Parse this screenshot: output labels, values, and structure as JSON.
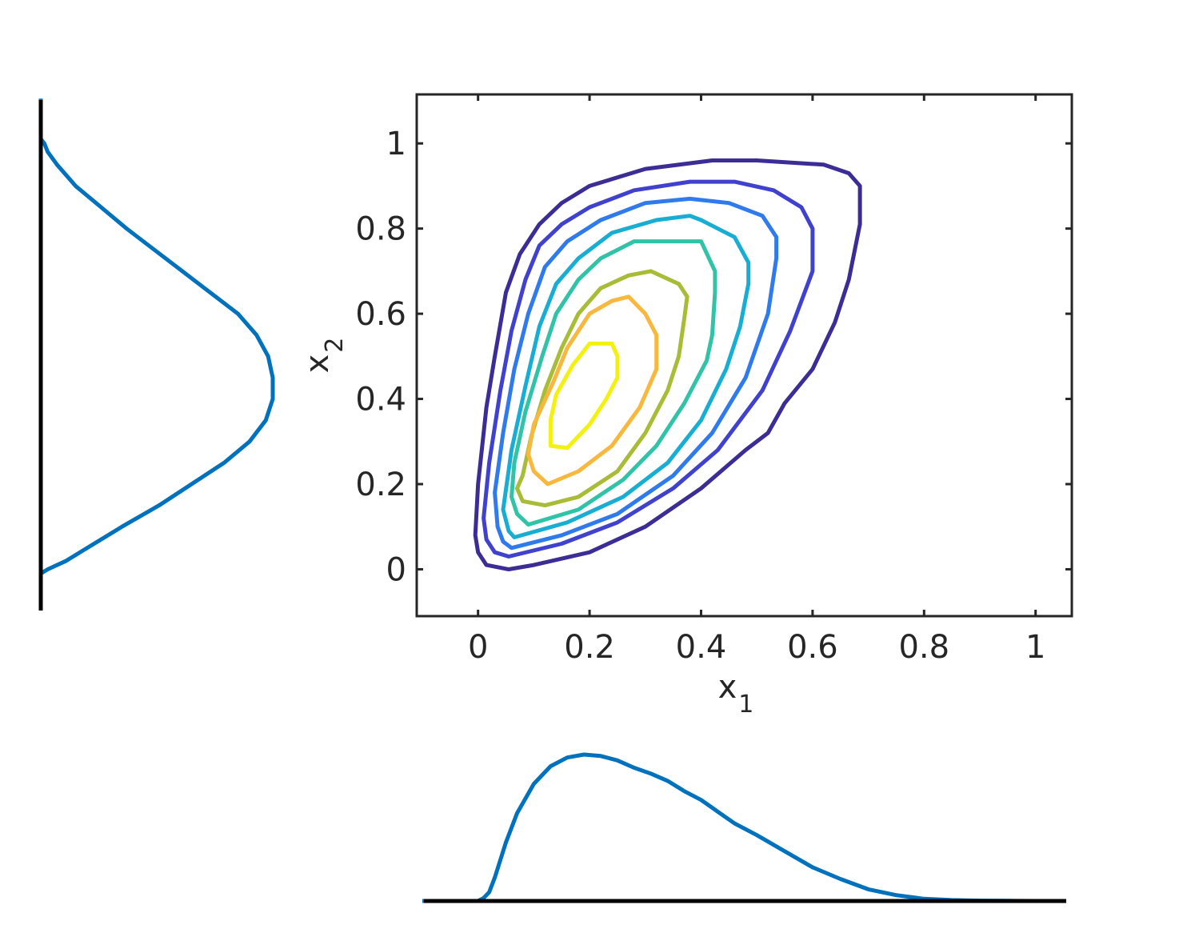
{
  "chart_data": [
    {
      "type": "contour",
      "xlabel": "x",
      "xlabel_sub": "1",
      "ylabel": "x",
      "ylabel_sub": "2",
      "xlim": [
        -0.11,
        1.065
      ],
      "ylim": [
        -0.11,
        1.115
      ],
      "xticks": [
        {
          "value": 0,
          "label": "0"
        },
        {
          "value": 0.2,
          "label": "0.2"
        },
        {
          "value": 0.4,
          "label": "0.4"
        },
        {
          "value": 0.6,
          "label": "0.6"
        },
        {
          "value": 0.8,
          "label": "0.8"
        },
        {
          "value": 1,
          "label": "1"
        }
      ],
      "yticks": [
        {
          "value": 0,
          "label": "0"
        },
        {
          "value": 0.2,
          "label": "0.2"
        },
        {
          "value": 0.4,
          "label": "0.4"
        },
        {
          "value": 0.6,
          "label": "0.6"
        },
        {
          "value": 0.8,
          "label": "0.8"
        },
        {
          "value": 1,
          "label": "1"
        }
      ],
      "box": true,
      "grid": false,
      "levels": [
        {
          "color": "#3b2d95",
          "points": [
            [
              0.055,
              0.0
            ],
            [
              0.1,
              0.01
            ],
            [
              0.2,
              0.04
            ],
            [
              0.3,
              0.1
            ],
            [
              0.4,
              0.19
            ],
            [
              0.48,
              0.28
            ],
            [
              0.52,
              0.32
            ],
            [
              0.55,
              0.39
            ],
            [
              0.6,
              0.47
            ],
            [
              0.64,
              0.58
            ],
            [
              0.665,
              0.68
            ],
            [
              0.685,
              0.81
            ],
            [
              0.685,
              0.9
            ],
            [
              0.665,
              0.93
            ],
            [
              0.62,
              0.95
            ],
            [
              0.5,
              0.96
            ],
            [
              0.42,
              0.96
            ],
            [
              0.3,
              0.94
            ],
            [
              0.2,
              0.9
            ],
            [
              0.15,
              0.86
            ],
            [
              0.11,
              0.81
            ],
            [
              0.075,
              0.74
            ],
            [
              0.05,
              0.65
            ],
            [
              0.03,
              0.5
            ],
            [
              0.015,
              0.38
            ],
            [
              0.0,
              0.2
            ],
            [
              -0.005,
              0.08
            ],
            [
              0.0,
              0.04
            ],
            [
              0.015,
              0.01
            ]
          ]
        },
        {
          "color": "#4042cf",
          "points": [
            [
              0.055,
              0.03
            ],
            [
              0.15,
              0.06
            ],
            [
              0.25,
              0.11
            ],
            [
              0.35,
              0.19
            ],
            [
              0.43,
              0.28
            ],
            [
              0.51,
              0.42
            ],
            [
              0.56,
              0.56
            ],
            [
              0.6,
              0.7
            ],
            [
              0.6,
              0.8
            ],
            [
              0.58,
              0.85
            ],
            [
              0.53,
              0.89
            ],
            [
              0.46,
              0.91
            ],
            [
              0.38,
              0.91
            ],
            [
              0.28,
              0.89
            ],
            [
              0.2,
              0.85
            ],
            [
              0.15,
              0.81
            ],
            [
              0.11,
              0.76
            ],
            [
              0.085,
              0.68
            ],
            [
              0.06,
              0.56
            ],
            [
              0.04,
              0.42
            ],
            [
              0.02,
              0.25
            ],
            [
              0.01,
              0.12
            ],
            [
              0.015,
              0.07
            ],
            [
              0.03,
              0.04
            ]
          ]
        },
        {
          "color": "#2f7bee",
          "points": [
            [
              0.06,
              0.05
            ],
            [
              0.15,
              0.08
            ],
            [
              0.25,
              0.13
            ],
            [
              0.35,
              0.22
            ],
            [
              0.42,
              0.32
            ],
            [
              0.48,
              0.45
            ],
            [
              0.52,
              0.6
            ],
            [
              0.535,
              0.73
            ],
            [
              0.535,
              0.78
            ],
            [
              0.51,
              0.83
            ],
            [
              0.45,
              0.86
            ],
            [
              0.38,
              0.87
            ],
            [
              0.3,
              0.86
            ],
            [
              0.22,
              0.82
            ],
            [
              0.16,
              0.77
            ],
            [
              0.12,
              0.71
            ],
            [
              0.09,
              0.6
            ],
            [
              0.065,
              0.47
            ],
            [
              0.045,
              0.32
            ],
            [
              0.03,
              0.18
            ],
            [
              0.035,
              0.1
            ],
            [
              0.045,
              0.065
            ]
          ]
        },
        {
          "color": "#18aed4",
          "points": [
            [
              0.065,
              0.075
            ],
            [
              0.16,
              0.11
            ],
            [
              0.26,
              0.17
            ],
            [
              0.34,
              0.25
            ],
            [
              0.4,
              0.35
            ],
            [
              0.445,
              0.47
            ],
            [
              0.47,
              0.57
            ],
            [
              0.485,
              0.67
            ],
            [
              0.485,
              0.72
            ],
            [
              0.46,
              0.78
            ],
            [
              0.4,
              0.82
            ],
            [
              0.38,
              0.83
            ],
            [
              0.32,
              0.82
            ],
            [
              0.24,
              0.79
            ],
            [
              0.18,
              0.73
            ],
            [
              0.14,
              0.67
            ],
            [
              0.11,
              0.57
            ],
            [
              0.085,
              0.43
            ],
            [
              0.06,
              0.28
            ],
            [
              0.045,
              0.14
            ],
            [
              0.055,
              0.09
            ]
          ]
        },
        {
          "color": "#31c3a7",
          "points": [
            [
              0.09,
              0.105
            ],
            [
              0.18,
              0.14
            ],
            [
              0.26,
              0.21
            ],
            [
              0.32,
              0.29
            ],
            [
              0.37,
              0.39
            ],
            [
              0.41,
              0.49
            ],
            [
              0.42,
              0.55
            ],
            [
              0.425,
              0.65
            ],
            [
              0.425,
              0.7
            ],
            [
              0.4,
              0.77
            ],
            [
              0.35,
              0.77
            ],
            [
              0.28,
              0.77
            ],
            [
              0.22,
              0.73
            ],
            [
              0.18,
              0.68
            ],
            [
              0.14,
              0.6
            ],
            [
              0.115,
              0.5
            ],
            [
              0.085,
              0.37
            ],
            [
              0.065,
              0.25
            ],
            [
              0.06,
              0.17
            ],
            [
              0.07,
              0.13
            ]
          ]
        },
        {
          "color": "#a8bc35",
          "points": [
            [
              0.08,
              0.16
            ],
            [
              0.12,
              0.15
            ],
            [
              0.18,
              0.17
            ],
            [
              0.25,
              0.23
            ],
            [
              0.3,
              0.32
            ],
            [
              0.34,
              0.42
            ],
            [
              0.36,
              0.5
            ],
            [
              0.37,
              0.59
            ],
            [
              0.375,
              0.64
            ],
            [
              0.36,
              0.67
            ],
            [
              0.31,
              0.7
            ],
            [
              0.27,
              0.69
            ],
            [
              0.22,
              0.66
            ],
            [
              0.18,
              0.6
            ],
            [
              0.15,
              0.52
            ],
            [
              0.12,
              0.42
            ],
            [
              0.095,
              0.31
            ],
            [
              0.08,
              0.22
            ],
            [
              0.07,
              0.19
            ]
          ]
        },
        {
          "color": "#f8b83d",
          "points": [
            [
              0.125,
              0.2
            ],
            [
              0.18,
              0.23
            ],
            [
              0.24,
              0.29
            ],
            [
              0.29,
              0.38
            ],
            [
              0.32,
              0.47
            ],
            [
              0.32,
              0.55
            ],
            [
              0.3,
              0.6
            ],
            [
              0.27,
              0.64
            ],
            [
              0.24,
              0.63
            ],
            [
              0.2,
              0.6
            ],
            [
              0.16,
              0.52
            ],
            [
              0.135,
              0.44
            ],
            [
              0.1,
              0.34
            ],
            [
              0.09,
              0.27
            ],
            [
              0.1,
              0.23
            ]
          ]
        },
        {
          "color": "#f2f10f",
          "points": [
            [
              0.16,
              0.285
            ],
            [
              0.2,
              0.34
            ],
            [
              0.23,
              0.4
            ],
            [
              0.25,
              0.45
            ],
            [
              0.25,
              0.5
            ],
            [
              0.24,
              0.53
            ],
            [
              0.2,
              0.53
            ],
            [
              0.17,
              0.48
            ],
            [
              0.14,
              0.41
            ],
            [
              0.13,
              0.35
            ],
            [
              0.13,
              0.29
            ]
          ]
        }
      ]
    },
    {
      "type": "line",
      "orientation": "horizontal",
      "color": "#0072bd",
      "x": [
        -0.1,
        0.0,
        0.01,
        0.02,
        0.03,
        0.05,
        0.07,
        0.1,
        0.13,
        0.16,
        0.19,
        0.22,
        0.25,
        0.28,
        0.31,
        0.34,
        0.37,
        0.4,
        0.43,
        0.46,
        0.5,
        0.55,
        0.6,
        0.65,
        0.7,
        0.75,
        0.8,
        0.85,
        0.9,
        0.95,
        1.0,
        1.05
      ],
      "y": [
        0.0,
        0.0,
        0.02,
        0.06,
        0.16,
        0.4,
        0.6,
        0.8,
        0.92,
        0.98,
        1.0,
        0.99,
        0.96,
        0.91,
        0.87,
        0.82,
        0.75,
        0.69,
        0.61,
        0.53,
        0.45,
        0.34,
        0.23,
        0.15,
        0.08,
        0.04,
        0.015,
        0.006,
        0.002,
        0.001,
        0.0,
        0.0
      ]
    },
    {
      "type": "line",
      "orientation": "vertical",
      "color": "#0072bd",
      "y": [
        -0.09,
        -0.01,
        0.0,
        0.02,
        0.05,
        0.1,
        0.15,
        0.2,
        0.25,
        0.3,
        0.35,
        0.4,
        0.45,
        0.5,
        0.55,
        0.6,
        0.65,
        0.7,
        0.75,
        0.8,
        0.85,
        0.9,
        0.95,
        0.98,
        1.0,
        1.01,
        1.105
      ],
      "density": [
        0.0,
        0.0,
        0.03,
        0.11,
        0.2,
        0.35,
        0.51,
        0.65,
        0.79,
        0.9,
        0.97,
        1.0,
        1.0,
        0.98,
        0.93,
        0.85,
        0.73,
        0.61,
        0.49,
        0.37,
        0.26,
        0.15,
        0.07,
        0.03,
        0.015,
        0.0,
        0.0
      ]
    }
  ]
}
